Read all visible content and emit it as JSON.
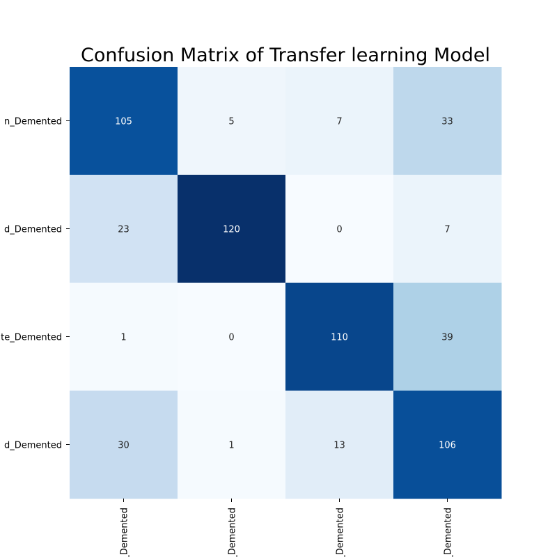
{
  "chart_data": {
    "type": "heatmap",
    "title": "Confusion Matrix of Transfer learning Model",
    "row_labels": [
      "n_Demented",
      "d_Demented",
      "te_Demented",
      "d_Demented"
    ],
    "col_labels": [
      "_Demented",
      "_Demented",
      "_Demented",
      "_Demented"
    ],
    "values": [
      [
        105,
        5,
        7,
        33
      ],
      [
        23,
        120,
        0,
        7
      ],
      [
        1,
        0,
        110,
        39
      ],
      [
        30,
        1,
        13,
        106
      ]
    ],
    "vmin": 0,
    "vmax": 120,
    "colormap": "Blues",
    "colorbar": false,
    "grid": false
  }
}
